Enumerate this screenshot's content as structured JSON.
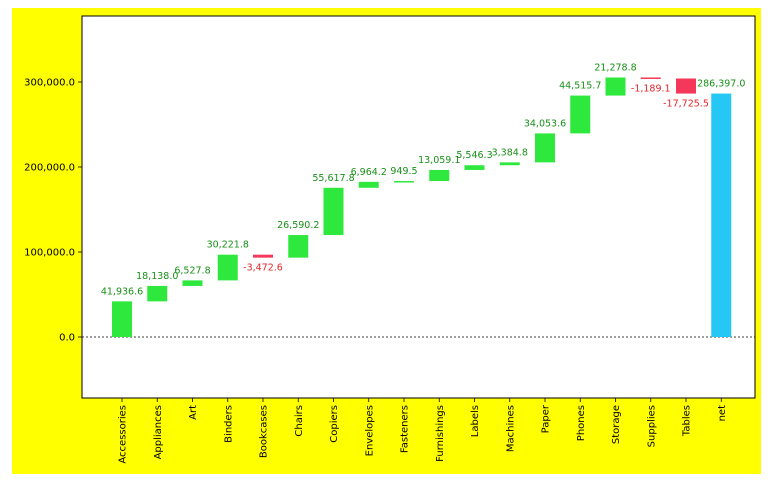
{
  "chart_data": {
    "type": "bar",
    "subtype": "waterfall",
    "title": "",
    "xlabel": "",
    "ylabel": "",
    "ylim": [
      -75000,
      380000
    ],
    "yticks": [
      0,
      100000,
      200000,
      300000
    ],
    "ytick_labels": [
      "0.0",
      "100,000.0",
      "200,000.0",
      "300,000.0"
    ],
    "grid": false,
    "zero_line": "dotted",
    "categories": [
      "Accessories",
      "Appliances",
      "Art",
      "Binders",
      "Bookcases",
      "Chairs",
      "Copiers",
      "Envelopes",
      "Fasteners",
      "Furnishings",
      "Labels",
      "Machines",
      "Paper",
      "Phones",
      "Storage",
      "Supplies",
      "Tables",
      "net"
    ],
    "values": [
      41936.6,
      18138.0,
      6527.8,
      30221.8,
      -3472.6,
      26590.2,
      55617.8,
      6964.2,
      949.5,
      13059.1,
      5546.3,
      3384.8,
      34053.6,
      44515.7,
      21278.8,
      -1189.1,
      -17725.5,
      286397.0
    ],
    "labels": [
      "41,936.6",
      "18,138.0",
      "6,527.8",
      "30,221.8",
      "-3,472.6",
      "26,590.2",
      "55,617.8",
      "6,964.2",
      "949.5",
      "13,059.1",
      "5,546.3",
      "3,384.8",
      "34,053.6",
      "44,515.7",
      "21,278.8",
      "-1,189.1",
      "-17,725.5",
      "286,397.0"
    ],
    "total_category": "net",
    "colors": {
      "increase": "#2ee83e",
      "decrease": "#f5385a",
      "total": "#25c8f5",
      "increase_label": "#1a8f1a",
      "decrease_label": "#e8242c",
      "figure_background": "#ffff00",
      "plot_background": "#ffffff"
    }
  }
}
